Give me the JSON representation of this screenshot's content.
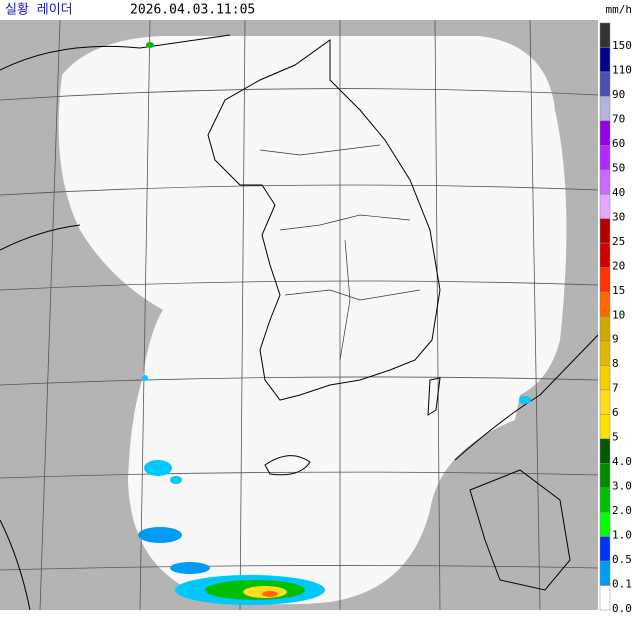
{
  "header": {
    "title": "실황 레이더",
    "time": "2026.04.03.11:05",
    "unit": "mm/h"
  },
  "legend": {
    "items": [
      {
        "label": "150",
        "color": "#333333"
      },
      {
        "label": "110",
        "color": "#000390"
      },
      {
        "label": "90",
        "color": "#4c4eb1"
      },
      {
        "label": "70",
        "color": "#b3b4de"
      },
      {
        "label": "60",
        "color": "#9300e4"
      },
      {
        "label": "50",
        "color": "#b329ff"
      },
      {
        "label": "40",
        "color": "#c969ff"
      },
      {
        "label": "30",
        "color": "#e0a9ff"
      },
      {
        "label": "25",
        "color": "#b40000"
      },
      {
        "label": "20",
        "color": "#d20000"
      },
      {
        "label": "15",
        "color": "#ff3200"
      },
      {
        "label": "10",
        "color": "#ff6600"
      },
      {
        "label": "9",
        "color": "#ccaa00"
      },
      {
        "label": "8",
        "color": "#e0b900"
      },
      {
        "label": "7",
        "color": "#f9cd00"
      },
      {
        "label": "6",
        "color": "#ffdc1f"
      },
      {
        "label": "5",
        "color": "#ffe100"
      },
      {
        "label": "4.0",
        "color": "#005a00"
      },
      {
        "label": "3.0",
        "color": "#008c00"
      },
      {
        "label": "2.0",
        "color": "#00be00"
      },
      {
        "label": "1.0",
        "color": "#00ff00"
      },
      {
        "label": "0.5",
        "color": "#0033f5"
      },
      {
        "label": "0.1",
        "color": "#009bf5"
      },
      {
        "label": "0.0",
        "color": "#ffffff"
      }
    ]
  }
}
